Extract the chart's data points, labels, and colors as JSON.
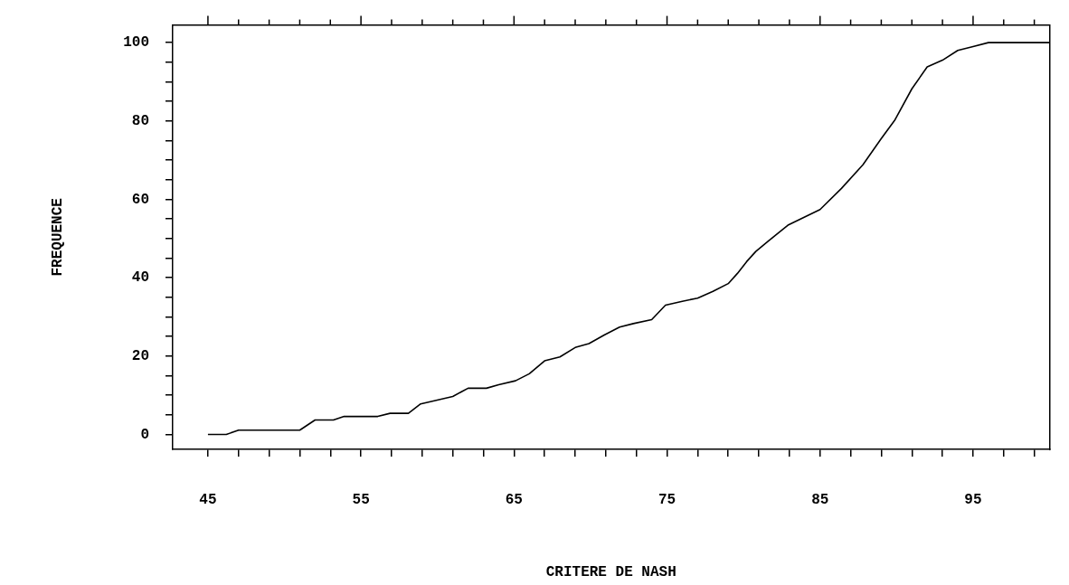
{
  "chart_data": {
    "type": "line",
    "xlabel": "CRITERE DE NASH",
    "ylabel": "FREQUENCE",
    "xlim": [
      42.7,
      100
    ],
    "ylim": [
      -3.8,
      104.5
    ],
    "xticks": [
      45,
      {
        "value": 47,
        "label": null
      },
      {
        "value": 49,
        "label": null
      },
      {
        "value": 51,
        "label": null
      },
      {
        "value": 53,
        "label": null
      },
      55,
      {
        "value": 57,
        "label": null
      },
      {
        "value": 59,
        "label": null
      },
      {
        "value": 61,
        "label": null
      },
      {
        "value": 63,
        "label": null
      },
      65,
      {
        "value": 67,
        "label": null
      },
      {
        "value": 69,
        "label": null
      },
      {
        "value": 71,
        "label": null
      },
      {
        "value": 73,
        "label": null
      },
      75,
      {
        "value": 77,
        "label": null
      },
      {
        "value": 79,
        "label": null
      },
      {
        "value": 81,
        "label": null
      },
      {
        "value": 83,
        "label": null
      },
      85,
      {
        "value": 87,
        "label": null
      },
      {
        "value": 89,
        "label": null
      },
      {
        "value": 91,
        "label": null
      },
      {
        "value": 93,
        "label": null
      },
      95,
      {
        "value": 97,
        "label": null
      },
      {
        "value": 99,
        "label": null
      }
    ],
    "yticks": [
      0,
      {
        "value": 5,
        "label": null
      },
      {
        "value": 10,
        "label": null
      },
      {
        "value": 15,
        "label": null
      },
      20,
      {
        "value": 25,
        "label": null
      },
      {
        "value": 30,
        "label": null
      },
      {
        "value": 35,
        "label": null
      },
      40,
      {
        "value": 45,
        "label": null
      },
      {
        "value": 50,
        "label": null
      },
      {
        "value": 55,
        "label": null
      },
      60,
      {
        "value": 65,
        "label": null
      },
      {
        "value": 70,
        "label": null
      },
      {
        "value": 75,
        "label": null
      },
      80,
      {
        "value": 85,
        "label": null
      },
      {
        "value": 90,
        "label": null
      },
      {
        "value": 95,
        "label": null
      },
      100
    ],
    "legend": false,
    "marker": "none",
    "line_style": "solid",
    "series": [
      {
        "color": "#000000",
        "x": [
          45,
          46.2,
          47,
          51,
          52,
          53.2,
          53.9,
          56.1,
          56.9,
          58.1,
          58.9,
          61,
          62,
          63.2,
          64,
          65.1,
          66,
          67,
          68,
          69,
          69.9,
          70.9,
          71.9,
          72.8,
          74,
          74.9,
          76,
          77,
          78,
          79,
          79.6,
          80.2,
          80.8,
          81.6,
          82.9,
          85,
          86.4,
          87.8,
          89,
          89.9,
          91,
          92,
          93,
          94,
          95,
          96,
          100
        ],
        "values": [
          0,
          0,
          1.1,
          1.1,
          3.7,
          3.7,
          4.6,
          4.6,
          5.4,
          5.4,
          7.8,
          9.7,
          11.8,
          11.8,
          12.7,
          13.7,
          15.5,
          18.8,
          19.8,
          22.2,
          23.2,
          25.4,
          27.4,
          28.3,
          29.3,
          33,
          34,
          34.8,
          36.5,
          38.5,
          41.1,
          44.1,
          46.7,
          49.3,
          53.4,
          57.4,
          62.8,
          68.8,
          75.5,
          80.3,
          88.2,
          93.8,
          95.5,
          98,
          99,
          100,
          100
        ]
      }
    ]
  }
}
